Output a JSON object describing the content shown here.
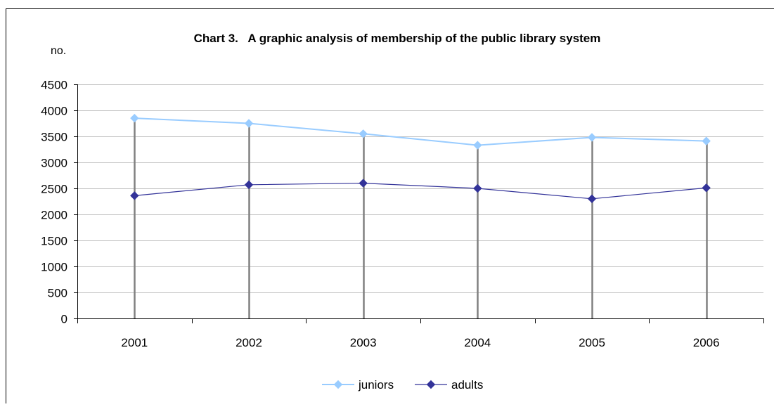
{
  "chart_data": {
    "type": "line",
    "title": "Chart 3.   A graphic analysis of membership of the public library system",
    "ylabel": "no.",
    "xlabel": "",
    "categories": [
      "2001",
      "2002",
      "2003",
      "2004",
      "2005",
      "2006"
    ],
    "ylim": [
      0,
      4500
    ],
    "yticks": [
      0,
      500,
      1000,
      1500,
      2000,
      2500,
      3000,
      3500,
      4000,
      4500
    ],
    "grid": true,
    "drop_lines": true,
    "legend_position": "bottom",
    "series": [
      {
        "name": "juniors",
        "color": "#99ccff",
        "marker": "diamond",
        "values": [
          3850,
          3750,
          3550,
          3330,
          3480,
          3410
        ]
      },
      {
        "name": "adults",
        "color": "#333399",
        "marker": "diamond",
        "values": [
          2360,
          2570,
          2600,
          2500,
          2300,
          2510
        ]
      }
    ]
  }
}
